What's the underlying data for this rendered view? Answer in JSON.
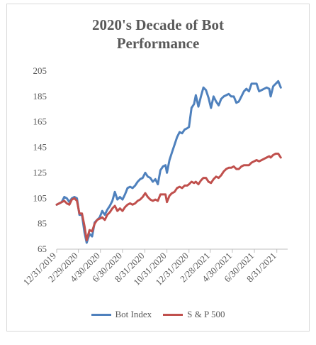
{
  "chart_data": {
    "type": "line",
    "title_lines": [
      "2020's Decade of Bot",
      "Performance"
    ],
    "xlabel": "",
    "ylabel": "",
    "ylim": [
      65,
      205
    ],
    "yticks": [
      65,
      85,
      105,
      125,
      145,
      165,
      185,
      205
    ],
    "xlim": [
      "2019-12-31",
      "2021-09-30"
    ],
    "xticks": [
      "12/31/2019",
      "2/29/2020",
      "4/30/2020",
      "6/30/2020",
      "8/31/2020",
      "10/31/2020",
      "12/31/2020",
      "2/28/2021",
      "4/30/2021",
      "6/30/2021",
      "8/31/2021"
    ],
    "xtick_dates": [
      "2019-12-31",
      "2020-02-29",
      "2020-04-30",
      "2020-06-30",
      "2020-08-31",
      "2020-10-31",
      "2020-12-31",
      "2021-02-28",
      "2021-04-30",
      "2021-06-30",
      "2021-08-31"
    ],
    "grid": false,
    "legend_position": "bottom",
    "series": [
      {
        "name": "Bot Index",
        "color": "#4f81bd",
        "points": [
          [
            "2019-12-31",
            100
          ],
          [
            "2020-01-07",
            101
          ],
          [
            "2020-01-14",
            102
          ],
          [
            "2020-01-21",
            106
          ],
          [
            "2020-01-28",
            105
          ],
          [
            "2020-02-04",
            102
          ],
          [
            "2020-02-11",
            105
          ],
          [
            "2020-02-18",
            106
          ],
          [
            "2020-02-25",
            105
          ],
          [
            "2020-03-03",
            92
          ],
          [
            "2020-03-10",
            92
          ],
          [
            "2020-03-17",
            78
          ],
          [
            "2020-03-23",
            70
          ],
          [
            "2020-03-31",
            77
          ],
          [
            "2020-04-07",
            75
          ],
          [
            "2020-04-14",
            86
          ],
          [
            "2020-04-21",
            88
          ],
          [
            "2020-04-28",
            90
          ],
          [
            "2020-05-05",
            95
          ],
          [
            "2020-05-12",
            92
          ],
          [
            "2020-05-19",
            96
          ],
          [
            "2020-05-26",
            99
          ],
          [
            "2020-06-02",
            103
          ],
          [
            "2020-06-09",
            110
          ],
          [
            "2020-06-16",
            104
          ],
          [
            "2020-06-23",
            106
          ],
          [
            "2020-06-30",
            104
          ],
          [
            "2020-07-07",
            108
          ],
          [
            "2020-07-14",
            113
          ],
          [
            "2020-07-21",
            114
          ],
          [
            "2020-07-28",
            113
          ],
          [
            "2020-08-04",
            115
          ],
          [
            "2020-08-11",
            118
          ],
          [
            "2020-08-18",
            120
          ],
          [
            "2020-08-25",
            121
          ],
          [
            "2020-09-01",
            125
          ],
          [
            "2020-09-08",
            122
          ],
          [
            "2020-09-15",
            121
          ],
          [
            "2020-09-22",
            118
          ],
          [
            "2020-09-29",
            120
          ],
          [
            "2020-10-06",
            116
          ],
          [
            "2020-10-13",
            127
          ],
          [
            "2020-10-20",
            130
          ],
          [
            "2020-10-27",
            131
          ],
          [
            "2020-10-31",
            125
          ],
          [
            "2020-11-07",
            135
          ],
          [
            "2020-11-14",
            141
          ],
          [
            "2020-11-21",
            147
          ],
          [
            "2020-11-28",
            153
          ],
          [
            "2020-12-05",
            157
          ],
          [
            "2020-12-12",
            156
          ],
          [
            "2020-12-19",
            159
          ],
          [
            "2020-12-26",
            160
          ],
          [
            "2020-12-31",
            161
          ],
          [
            "2021-01-07",
            176
          ],
          [
            "2021-01-14",
            179
          ],
          [
            "2021-01-19",
            186
          ],
          [
            "2021-01-26",
            177
          ],
          [
            "2021-02-02",
            185
          ],
          [
            "2021-02-09",
            192
          ],
          [
            "2021-02-16",
            190
          ],
          [
            "2021-02-23",
            184
          ],
          [
            "2021-03-02",
            176
          ],
          [
            "2021-03-09",
            185
          ],
          [
            "2021-03-16",
            181
          ],
          [
            "2021-03-23",
            178
          ],
          [
            "2021-03-30",
            183
          ],
          [
            "2021-04-06",
            185
          ],
          [
            "2021-04-13",
            186
          ],
          [
            "2021-04-20",
            187
          ],
          [
            "2021-04-27",
            185
          ],
          [
            "2021-05-04",
            185
          ],
          [
            "2021-05-11",
            180
          ],
          [
            "2021-05-18",
            181
          ],
          [
            "2021-05-25",
            185
          ],
          [
            "2021-06-01",
            189
          ],
          [
            "2021-06-08",
            191
          ],
          [
            "2021-06-15",
            189
          ],
          [
            "2021-06-22",
            195
          ],
          [
            "2021-06-29",
            195
          ],
          [
            "2021-07-06",
            195
          ],
          [
            "2021-07-13",
            189
          ],
          [
            "2021-07-20",
            190
          ],
          [
            "2021-07-27",
            191
          ],
          [
            "2021-08-03",
            192
          ],
          [
            "2021-08-10",
            191
          ],
          [
            "2021-08-14",
            185
          ],
          [
            "2021-08-21",
            193
          ],
          [
            "2021-08-28",
            195
          ],
          [
            "2021-09-04",
            197
          ],
          [
            "2021-09-11",
            192
          ]
        ]
      },
      {
        "name": "S & P 500",
        "color": "#c0504d",
        "points": [
          [
            "2019-12-31",
            100
          ],
          [
            "2020-01-07",
            101
          ],
          [
            "2020-01-14",
            102
          ],
          [
            "2020-01-21",
            103
          ],
          [
            "2020-01-28",
            101
          ],
          [
            "2020-02-04",
            100
          ],
          [
            "2020-02-11",
            104
          ],
          [
            "2020-02-18",
            105
          ],
          [
            "2020-02-25",
            103
          ],
          [
            "2020-03-03",
            93
          ],
          [
            "2020-03-10",
            93
          ],
          [
            "2020-03-17",
            83
          ],
          [
            "2020-03-23",
            72
          ],
          [
            "2020-03-31",
            80
          ],
          [
            "2020-04-07",
            79
          ],
          [
            "2020-04-14",
            85
          ],
          [
            "2020-04-21",
            88
          ],
          [
            "2020-04-28",
            89
          ],
          [
            "2020-05-05",
            90
          ],
          [
            "2020-05-12",
            88
          ],
          [
            "2020-05-19",
            92
          ],
          [
            "2020-05-26",
            94
          ],
          [
            "2020-06-02",
            97
          ],
          [
            "2020-06-09",
            99
          ],
          [
            "2020-06-16",
            95
          ],
          [
            "2020-06-23",
            97
          ],
          [
            "2020-06-30",
            95
          ],
          [
            "2020-07-07",
            98
          ],
          [
            "2020-07-14",
            100
          ],
          [
            "2020-07-21",
            101
          ],
          [
            "2020-07-28",
            100
          ],
          [
            "2020-08-04",
            101
          ],
          [
            "2020-08-11",
            103
          ],
          [
            "2020-08-18",
            104
          ],
          [
            "2020-08-25",
            106
          ],
          [
            "2020-09-01",
            109
          ],
          [
            "2020-09-08",
            106
          ],
          [
            "2020-09-15",
            104
          ],
          [
            "2020-09-22",
            103
          ],
          [
            "2020-09-29",
            104
          ],
          [
            "2020-10-06",
            103
          ],
          [
            "2020-10-13",
            108
          ],
          [
            "2020-10-20",
            108
          ],
          [
            "2020-10-27",
            108
          ],
          [
            "2020-10-31",
            102
          ],
          [
            "2020-11-07",
            107
          ],
          [
            "2020-11-14",
            109
          ],
          [
            "2020-11-21",
            110
          ],
          [
            "2020-11-28",
            113
          ],
          [
            "2020-12-05",
            114
          ],
          [
            "2020-12-12",
            113
          ],
          [
            "2020-12-19",
            115
          ],
          [
            "2020-12-26",
            115
          ],
          [
            "2020-12-31",
            116
          ],
          [
            "2021-01-07",
            118
          ],
          [
            "2021-01-14",
            117
          ],
          [
            "2021-01-19",
            118
          ],
          [
            "2021-01-26",
            116
          ],
          [
            "2021-02-02",
            119
          ],
          [
            "2021-02-09",
            121
          ],
          [
            "2021-02-16",
            121
          ],
          [
            "2021-02-23",
            118
          ],
          [
            "2021-03-02",
            117
          ],
          [
            "2021-03-09",
            120
          ],
          [
            "2021-03-16",
            122
          ],
          [
            "2021-03-23",
            121
          ],
          [
            "2021-03-30",
            123
          ],
          [
            "2021-04-06",
            126
          ],
          [
            "2021-04-13",
            128
          ],
          [
            "2021-04-20",
            129
          ],
          [
            "2021-04-27",
            129
          ],
          [
            "2021-05-04",
            130
          ],
          [
            "2021-05-11",
            128
          ],
          [
            "2021-05-18",
            128
          ],
          [
            "2021-05-25",
            130
          ],
          [
            "2021-06-01",
            131
          ],
          [
            "2021-06-08",
            131
          ],
          [
            "2021-06-15",
            131
          ],
          [
            "2021-06-22",
            133
          ],
          [
            "2021-06-29",
            134
          ],
          [
            "2021-07-06",
            135
          ],
          [
            "2021-07-13",
            134
          ],
          [
            "2021-07-20",
            135
          ],
          [
            "2021-07-27",
            136
          ],
          [
            "2021-08-03",
            137
          ],
          [
            "2021-08-10",
            138
          ],
          [
            "2021-08-14",
            137
          ],
          [
            "2021-08-21",
            139
          ],
          [
            "2021-08-28",
            140
          ],
          [
            "2021-09-04",
            140
          ],
          [
            "2021-09-11",
            137
          ]
        ]
      }
    ]
  }
}
